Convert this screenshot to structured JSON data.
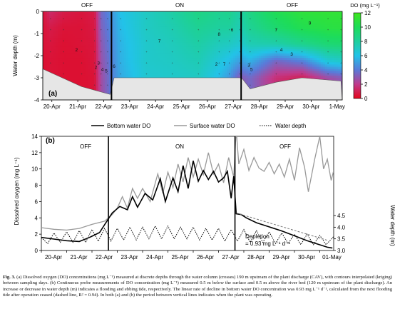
{
  "chart_data": [
    {
      "type": "heatmap",
      "panel_label": "(a)",
      "status_labels": [
        "OFF",
        "ON",
        "OFF"
      ],
      "ylabel": "Water depth (m)",
      "yticks": [
        0,
        -1,
        -2,
        -3,
        -4
      ],
      "ylim": [
        -4,
        0
      ],
      "xticks": [
        "20-Apr",
        "21-Apr",
        "22-Apr",
        "23-Apr",
        "24-Apr",
        "25-Apr",
        "26-Apr",
        "27-Apr",
        "28-Apr",
        "29-Apr",
        "30-Apr",
        "1-May"
      ],
      "on_period": [
        "22-Apr",
        "27-Apr"
      ],
      "colorbar": {
        "title": "DO (mg L⁻¹)",
        "ticks": [
          0,
          2,
          4,
          6,
          8,
          10,
          12
        ],
        "range": [
          0,
          12
        ],
        "colors": [
          "#e3061b",
          "#c03a8c",
          "#5b79d8",
          "#22c3e8",
          "#1ecf9e",
          "#1ddc5a",
          "#3fe61e"
        ]
      },
      "columns": [
        {
          "day": 0.0,
          "do": [
            0.6,
            0.5,
            0.5,
            0.4,
            0.4
          ]
        },
        {
          "day": 0.3,
          "do": [
            1.4,
            0.8,
            0.6,
            0.5,
            0.5
          ]
        },
        {
          "day": 0.8,
          "do": [
            0.8,
            0.5,
            0.4,
            0.4,
            0.4
          ]
        },
        {
          "day": 1.5,
          "do": [
            0.6,
            0.5,
            0.5,
            0.4,
            0.4
          ]
        },
        {
          "day": 2.0,
          "do": [
            0.8,
            0.7,
            0.6,
            0.6,
            0.5
          ]
        },
        {
          "day": 2.25,
          "do": [
            3.5,
            3.3,
            3.0,
            2.8,
            2.6
          ]
        },
        {
          "day": 2.5,
          "do": [
            4.2,
            4.0,
            3.8,
            3.6,
            3.5
          ]
        },
        {
          "day": 3.0,
          "do": [
            6.0,
            5.8,
            5.6,
            5.5,
            5.3
          ]
        },
        {
          "day": 4.0,
          "do": [
            7.0,
            7.0,
            6.8,
            6.8,
            6.6
          ]
        },
        {
          "day": 5.0,
          "do": [
            7.8,
            7.5,
            7.2,
            7.0,
            6.8
          ]
        },
        {
          "day": 6.0,
          "do": [
            8.8,
            8.3,
            7.8,
            7.4,
            7.0
          ]
        },
        {
          "day": 6.8,
          "do": [
            8.4,
            8.0,
            7.2,
            6.4,
            5.8
          ]
        },
        {
          "day": 7.2,
          "do": [
            8.5,
            8.0,
            7.0,
            5.8,
            4.8
          ]
        },
        {
          "day": 7.6,
          "do": [
            7.8,
            7.4,
            6.6,
            5.0,
            3.0
          ]
        },
        {
          "day": 8.0,
          "do": [
            8.8,
            8.3,
            7.4,
            5.5,
            3.5
          ]
        },
        {
          "day": 9.0,
          "do": [
            10.2,
            9.4,
            7.6,
            3.4,
            1.6
          ]
        },
        {
          "day": 10.0,
          "do": [
            11.0,
            10.3,
            8.4,
            4.2,
            1.0
          ]
        },
        {
          "day": 11.0,
          "do": [
            11.2,
            10.7,
            9.2,
            6.5,
            2.6
          ]
        },
        {
          "day": 11.5,
          "do": [
            11.2,
            10.8,
            9.3,
            6.8,
            3.0
          ]
        }
      ],
      "riverbed_depth": [
        {
          "day": 0.0,
          "depth": -2.6
        },
        {
          "day": 1.5,
          "depth": -3.4
        },
        {
          "day": 2.6,
          "depth": -3.75
        },
        {
          "day": 2.75,
          "depth": -3.0
        },
        {
          "day": 7.6,
          "depth": -3.0
        },
        {
          "day": 7.7,
          "depth": -3.05
        },
        {
          "day": 8.0,
          "depth": -3.5
        },
        {
          "day": 9.0,
          "depth": -3.2
        },
        {
          "day": 10.0,
          "depth": -3.0
        },
        {
          "day": 11.5,
          "depth": -3.15
        }
      ],
      "contour_labels": [
        {
          "text": "2",
          "day": 1.3,
          "depth": -1.8
        },
        {
          "text": "2",
          "day": 2.05,
          "depth": -2.6
        },
        {
          "text": "3",
          "day": 2.15,
          "depth": -2.4
        },
        {
          "text": "4",
          "day": 2.3,
          "depth": -2.7
        },
        {
          "text": "5",
          "day": 2.45,
          "depth": -2.75
        },
        {
          "text": "6",
          "day": 2.75,
          "depth": -2.55
        },
        {
          "text": "7",
          "day": 4.5,
          "depth": -1.4
        },
        {
          "text": "8",
          "day": 6.8,
          "depth": -1.1
        },
        {
          "text": "2",
          "day": 6.7,
          "depth": -2.45
        },
        {
          "text": "7",
          "day": 7.0,
          "depth": -2.45
        },
        {
          "text": "6",
          "day": 7.3,
          "depth": -0.9
        },
        {
          "text": "3",
          "day": 7.95,
          "depth": -2.5
        },
        {
          "text": "5",
          "day": 8.05,
          "depth": -2.7
        },
        {
          "text": "7",
          "day": 9.0,
          "depth": -0.9
        },
        {
          "text": "9",
          "day": 10.3,
          "depth": -0.6
        },
        {
          "text": "4",
          "day": 9.2,
          "depth": -1.8
        },
        {
          "text": "3",
          "day": 9.6,
          "depth": -2.0
        }
      ]
    },
    {
      "type": "line",
      "panel_label": "(b)",
      "status_labels": [
        "OFF",
        "ON",
        "OFF"
      ],
      "legend": [
        "Bottom water DO",
        "Surface water DO",
        "Water depth"
      ],
      "ylabel": "Dissolved oxygen (mg L⁻¹)",
      "ylim": [
        0,
        14
      ],
      "yticks": [
        0,
        2,
        4,
        6,
        8,
        10,
        12,
        14
      ],
      "y2label": "Water depth (m)",
      "y2ticks": [
        "3.0",
        "3.5",
        "4.0",
        "4.5"
      ],
      "y2lim": [
        3.0,
        7.9
      ],
      "xticks": [
        "20-Apr",
        "21-Apr",
        "22-Apr",
        "23-Apr",
        "24-Apr",
        "25-Apr",
        "26-Apr",
        "27-Apr",
        "28-Apr",
        "29-Apr",
        "30-Apr",
        "01-May"
      ],
      "annotation": [
        "Depletion",
        "= 0.93 mg L⁻¹ d⁻¹"
      ],
      "depletion_line": {
        "start": [
          7.7,
          4.6
        ],
        "slope": -0.93
      },
      "series": [
        {
          "name": "Bottom water DO",
          "color": "#000000",
          "points": [
            [
              0.0,
              1.6
            ],
            [
              0.5,
              1.4
            ],
            [
              1.0,
              1.2
            ],
            [
              1.5,
              1.1
            ],
            [
              1.9,
              1.6
            ],
            [
              2.3,
              2.2
            ],
            [
              2.55,
              3.4
            ],
            [
              2.8,
              4.6
            ],
            [
              3.1,
              5.4
            ],
            [
              3.4,
              5.0
            ],
            [
              3.6,
              6.6
            ],
            [
              3.8,
              5.3
            ],
            [
              4.1,
              7.0
            ],
            [
              4.4,
              6.2
            ],
            [
              4.7,
              8.8
            ],
            [
              4.9,
              6.0
            ],
            [
              5.2,
              8.9
            ],
            [
              5.4,
              7.2
            ],
            [
              5.6,
              10.4
            ],
            [
              5.8,
              7.6
            ],
            [
              6.0,
              11.0
            ],
            [
              6.2,
              8.5
            ],
            [
              6.4,
              9.8
            ],
            [
              6.6,
              8.7
            ],
            [
              6.8,
              9.7
            ],
            [
              7.0,
              8.4
            ],
            [
              7.2,
              8.9
            ],
            [
              7.35,
              9.7
            ],
            [
              7.5,
              6.4
            ],
            [
              7.6,
              9.1
            ],
            [
              7.7,
              4.5
            ],
            [
              7.9,
              4.4
            ],
            [
              8.1,
              4.0
            ],
            [
              8.5,
              3.4
            ],
            [
              9.0,
              2.9
            ],
            [
              9.5,
              2.4
            ],
            [
              10.0,
              1.8
            ],
            [
              10.5,
              1.2
            ],
            [
              11.0,
              0.7
            ],
            [
              11.3,
              0.4
            ],
            [
              11.5,
              0.3
            ]
          ]
        },
        {
          "name": "Surface water DO",
          "color": "#999999",
          "points": [
            [
              0.0,
              2.8
            ],
            [
              0.5,
              2.6
            ],
            [
              1.0,
              2.5
            ],
            [
              1.5,
              2.7
            ],
            [
              2.0,
              3.2
            ],
            [
              2.5,
              3.6
            ],
            [
              2.8,
              4.4
            ],
            [
              3.0,
              5.2
            ],
            [
              3.2,
              6.6
            ],
            [
              3.4,
              5.2
            ],
            [
              3.6,
              7.6
            ],
            [
              3.8,
              6.4
            ],
            [
              4.0,
              7.6
            ],
            [
              4.3,
              6.0
            ],
            [
              4.6,
              9.4
            ],
            [
              4.8,
              7.0
            ],
            [
              5.0,
              9.6
            ],
            [
              5.2,
              7.7
            ],
            [
              5.4,
              10.6
            ],
            [
              5.6,
              8.4
            ],
            [
              5.8,
              11.4
            ],
            [
              6.0,
              9.0
            ],
            [
              6.2,
              11.2
            ],
            [
              6.4,
              9.3
            ],
            [
              6.6,
              12.0
            ],
            [
              6.8,
              9.4
            ],
            [
              7.0,
              10.6
            ],
            [
              7.2,
              8.3
            ],
            [
              7.4,
              11.4
            ],
            [
              7.6,
              9.0
            ],
            [
              7.7,
              14.8
            ],
            [
              7.8,
              10.6
            ],
            [
              8.0,
              12.4
            ],
            [
              8.2,
              9.8
            ],
            [
              8.4,
              11.4
            ],
            [
              8.6,
              10.1
            ],
            [
              8.8,
              9.7
            ],
            [
              9.0,
              10.8
            ],
            [
              9.2,
              9.4
            ],
            [
              9.4,
              10.6
            ],
            [
              9.6,
              9.0
            ],
            [
              9.8,
              11.2
            ],
            [
              10.0,
              8.6
            ],
            [
              10.2,
              12.6
            ],
            [
              10.4,
              10.2
            ],
            [
              10.55,
              7.2
            ],
            [
              10.8,
              11.2
            ],
            [
              11.0,
              14.0
            ],
            [
              11.15,
              10.0
            ],
            [
              11.3,
              11.2
            ],
            [
              11.45,
              8.6
            ],
            [
              11.55,
              9.8
            ]
          ]
        },
        {
          "name": "Water depth",
          "color": "#000000",
          "dashed": true,
          "points": [
            [
              0.0,
              3.55
            ],
            [
              0.25,
              3.3
            ],
            [
              0.5,
              3.75
            ],
            [
              0.75,
              3.35
            ],
            [
              1.0,
              3.8
            ],
            [
              1.25,
              3.35
            ],
            [
              1.5,
              3.85
            ],
            [
              1.75,
              3.35
            ],
            [
              2.0,
              3.9
            ],
            [
              2.25,
              3.4
            ],
            [
              2.5,
              3.95
            ],
            [
              2.75,
              3.4
            ],
            [
              3.0,
              3.95
            ],
            [
              3.25,
              3.45
            ],
            [
              3.5,
              4.0
            ],
            [
              3.75,
              3.45
            ],
            [
              4.0,
              4.0
            ],
            [
              4.25,
              3.5
            ],
            [
              4.5,
              4.05
            ],
            [
              4.75,
              3.5
            ],
            [
              5.0,
              4.05
            ],
            [
              5.25,
              3.5
            ],
            [
              5.5,
              4.0
            ],
            [
              5.75,
              3.5
            ],
            [
              6.0,
              4.0
            ],
            [
              6.25,
              3.45
            ],
            [
              6.5,
              3.95
            ],
            [
              6.75,
              3.45
            ],
            [
              7.0,
              3.95
            ],
            [
              7.25,
              3.4
            ],
            [
              7.5,
              3.9
            ],
            [
              7.75,
              3.4
            ],
            [
              8.0,
              3.9
            ],
            [
              8.25,
              3.35
            ],
            [
              8.5,
              3.85
            ],
            [
              8.75,
              3.35
            ],
            [
              9.0,
              3.8
            ],
            [
              9.25,
              3.3
            ],
            [
              9.5,
              3.75
            ],
            [
              9.75,
              3.3
            ],
            [
              10.0,
              3.7
            ],
            [
              10.25,
              3.25
            ],
            [
              10.5,
              3.7
            ],
            [
              10.75,
              3.25
            ],
            [
              11.0,
              3.65
            ],
            [
              11.25,
              3.25
            ],
            [
              11.55,
              3.6
            ]
          ]
        }
      ]
    }
  ],
  "caption": {
    "label": "Fig. 3.",
    "text": "(a) Dissolved oxygen (DO) concentrations (mg L⁻¹) measured at discrete depths through the water column (crosses) 190 m upstream of the plant discharge (CAV), with contours interpolated (kriging) between sampling days. (b) Continuous probe measurements of DO concentration (mg L⁻¹) measured 0.5 m below the surface and 0.5 m above the river bed (120 m upstream of the plant discharge). An increase or decrease in water depth (m) indicates a flooding and ebbing tide, respectively. The linear rate of decline in bottom water DO concentration was 0.93 mg L⁻¹ d⁻¹, calculated from the next flooding tide after operation ceased (dashed line, R² = 0.94). In both (a) and (b) the period between vertical lines indicates when the plant was operating."
  }
}
